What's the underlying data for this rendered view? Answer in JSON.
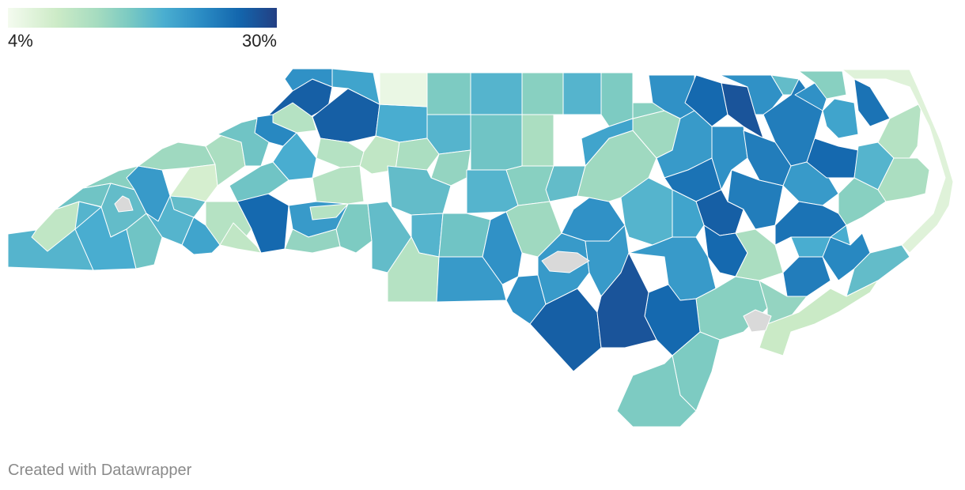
{
  "legend": {
    "min_label": "4%",
    "max_label": "30%",
    "min": 4,
    "max": 30,
    "colors": [
      "#f4fbef",
      "#cdebc7",
      "#a6dcc0",
      "#7bcac2",
      "#4aaed0",
      "#2b8cc4",
      "#1366ad",
      "#233f83"
    ]
  },
  "credit": "Created with Datawrapper",
  "no_data_color": "#d9d9d9",
  "regions": [
    {
      "id": "r01",
      "v": 18
    },
    {
      "id": "r02",
      "v": 9
    },
    {
      "id": "r03",
      "v": 16
    },
    {
      "id": "r04",
      "v": 14
    },
    {
      "id": "r05",
      "v": 17
    },
    {
      "id": "r06",
      "v": 19
    },
    {
      "id": "r07",
      "v": 16
    },
    {
      "id": "r08",
      "v": 21
    },
    {
      "id": "r09",
      "v": 18
    },
    {
      "id": "r10",
      "v": 12
    },
    {
      "id": "r11",
      "v": 7
    },
    {
      "id": "r12",
      "v": 17
    },
    {
      "id": "r13",
      "v": 11
    },
    {
      "id": "r14",
      "v": 27
    },
    {
      "id": "r15",
      "v": 22
    },
    {
      "id": "r16",
      "v": 27
    },
    {
      "id": "r17",
      "v": 20
    },
    {
      "id": "r18",
      "v": 10
    },
    {
      "id": "r19",
      "v": 23
    },
    {
      "id": "r20",
      "v": 16
    },
    {
      "id": "r21",
      "v": 26
    },
    {
      "id": "r22",
      "v": 10
    },
    {
      "id": "r23",
      "v": 20
    },
    {
      "id": "r24",
      "v": 9
    },
    {
      "id": "r25",
      "v": 10
    },
    {
      "id": "r26",
      "v": 19
    },
    {
      "id": "r27",
      "v": 16
    },
    {
      "id": "r28",
      "v": 10
    },
    {
      "id": "r29",
      "v": 15
    },
    {
      "id": "r30",
      "v": 21
    },
    {
      "id": "r31",
      "v": 10
    },
    {
      "id": "r32",
      "v": 13
    },
    {
      "id": "r33",
      "v": 17
    },
    {
      "id": "r34",
      "v": 19
    },
    {
      "id": "r35",
      "v": 5
    },
    {
      "id": "r36",
      "v": 9
    },
    {
      "id": "r37",
      "v": 11
    },
    {
      "id": "r38",
      "v": 15
    },
    {
      "id": "r39",
      "v": 18
    },
    {
      "id": "r40",
      "v": 13
    },
    {
      "id": "r41",
      "v": 17
    },
    {
      "id": "r42",
      "v": 18
    },
    {
      "id": "r43",
      "v": 16
    },
    {
      "id": "r44",
      "v": 18
    },
    {
      "id": "r45",
      "v": 14
    },
    {
      "id": "r46",
      "v": 11
    },
    {
      "id": "r47",
      "v": 18
    },
    {
      "id": "r48",
      "v": 15
    },
    {
      "id": "r49",
      "v": 18
    },
    {
      "id": "r50",
      "v": 16
    },
    {
      "id": "r51",
      "v": 10
    },
    {
      "id": "r52",
      "v": 17
    },
    {
      "id": "r53",
      "v": 14
    },
    {
      "id": "r54",
      "v": 12
    },
    {
      "id": "r55",
      "v": 22
    },
    {
      "id": "r56",
      "v": 21
    },
    {
      "id": "r57",
      "v": 22
    },
    {
      "id": "r58",
      "v": 27
    },
    {
      "id": "r59",
      "v": 21
    },
    {
      "id": "r60",
      "v": 22
    },
    {
      "id": "r61",
      "v": 12
    },
    {
      "id": "r62",
      "v": 20
    },
    {
      "id": "r63",
      "v": 21
    },
    {
      "id": "r64",
      "v": 18
    },
    {
      "id": "r65",
      "v": 12
    },
    {
      "id": "r66",
      "v": 22
    },
    {
      "id": "r67",
      "v": 14
    },
    {
      "id": "r68",
      "v": 21
    },
    {
      "id": "r69",
      "v": 25
    },
    {
      "id": "r70",
      "v": 22
    },
    {
      "id": "r71",
      "v": 26
    },
    {
      "id": "r72",
      "v": 28
    },
    {
      "id": "r73",
      "v": 22
    },
    {
      "id": "r74",
      "v": 17
    },
    {
      "id": "r75",
      "v": 24
    },
    {
      "id": "r76",
      "v": 24
    },
    {
      "id": "r77",
      "v": 21
    },
    {
      "id": "r78",
      "v": 26
    },
    {
      "id": "r79",
      "v": 22
    },
    {
      "id": "r80",
      "v": 20
    },
    {
      "id": "r81",
      "v": 14
    },
    {
      "id": "r82",
      "v": 25
    },
    {
      "id": "r83",
      "v": 18
    },
    {
      "id": "r84",
      "v": 24
    },
    {
      "id": "r85",
      "v": 27
    },
    {
      "id": "r86",
      "v": 20
    },
    {
      "id": "r87",
      "v": 14
    },
    {
      "id": "r88",
      "v": 26
    },
    {
      "id": "r89",
      "v": 11
    },
    {
      "id": "r90",
      "v": 25
    },
    {
      "id": "r91",
      "v": 19
    },
    {
      "id": "r92",
      "v": 24
    },
    {
      "id": "r93",
      "v": 23
    },
    {
      "id": "r94",
      "v": 17
    },
    {
      "id": "r95",
      "v": 21
    },
    {
      "id": "r96",
      "v": 14
    },
    {
      "id": "r97",
      "v": 26
    },
    {
      "id": "r98",
      "v": 13
    },
    {
      "id": "r99",
      "v": 28
    },
    {
      "id": "r100",
      "v": 15
    },
    {
      "id": "r101",
      "v": 15
    },
    {
      "id": "r102",
      "v": 11
    },
    {
      "id": "r103",
      "v": 10
    },
    {
      "id": "r104",
      "v": 8
    },
    {
      "id": "r105",
      "v": 6
    },
    {
      "id": "nd1",
      "v": null
    },
    {
      "id": "nd2",
      "v": null
    },
    {
      "id": "nd3",
      "v": null
    }
  ]
}
